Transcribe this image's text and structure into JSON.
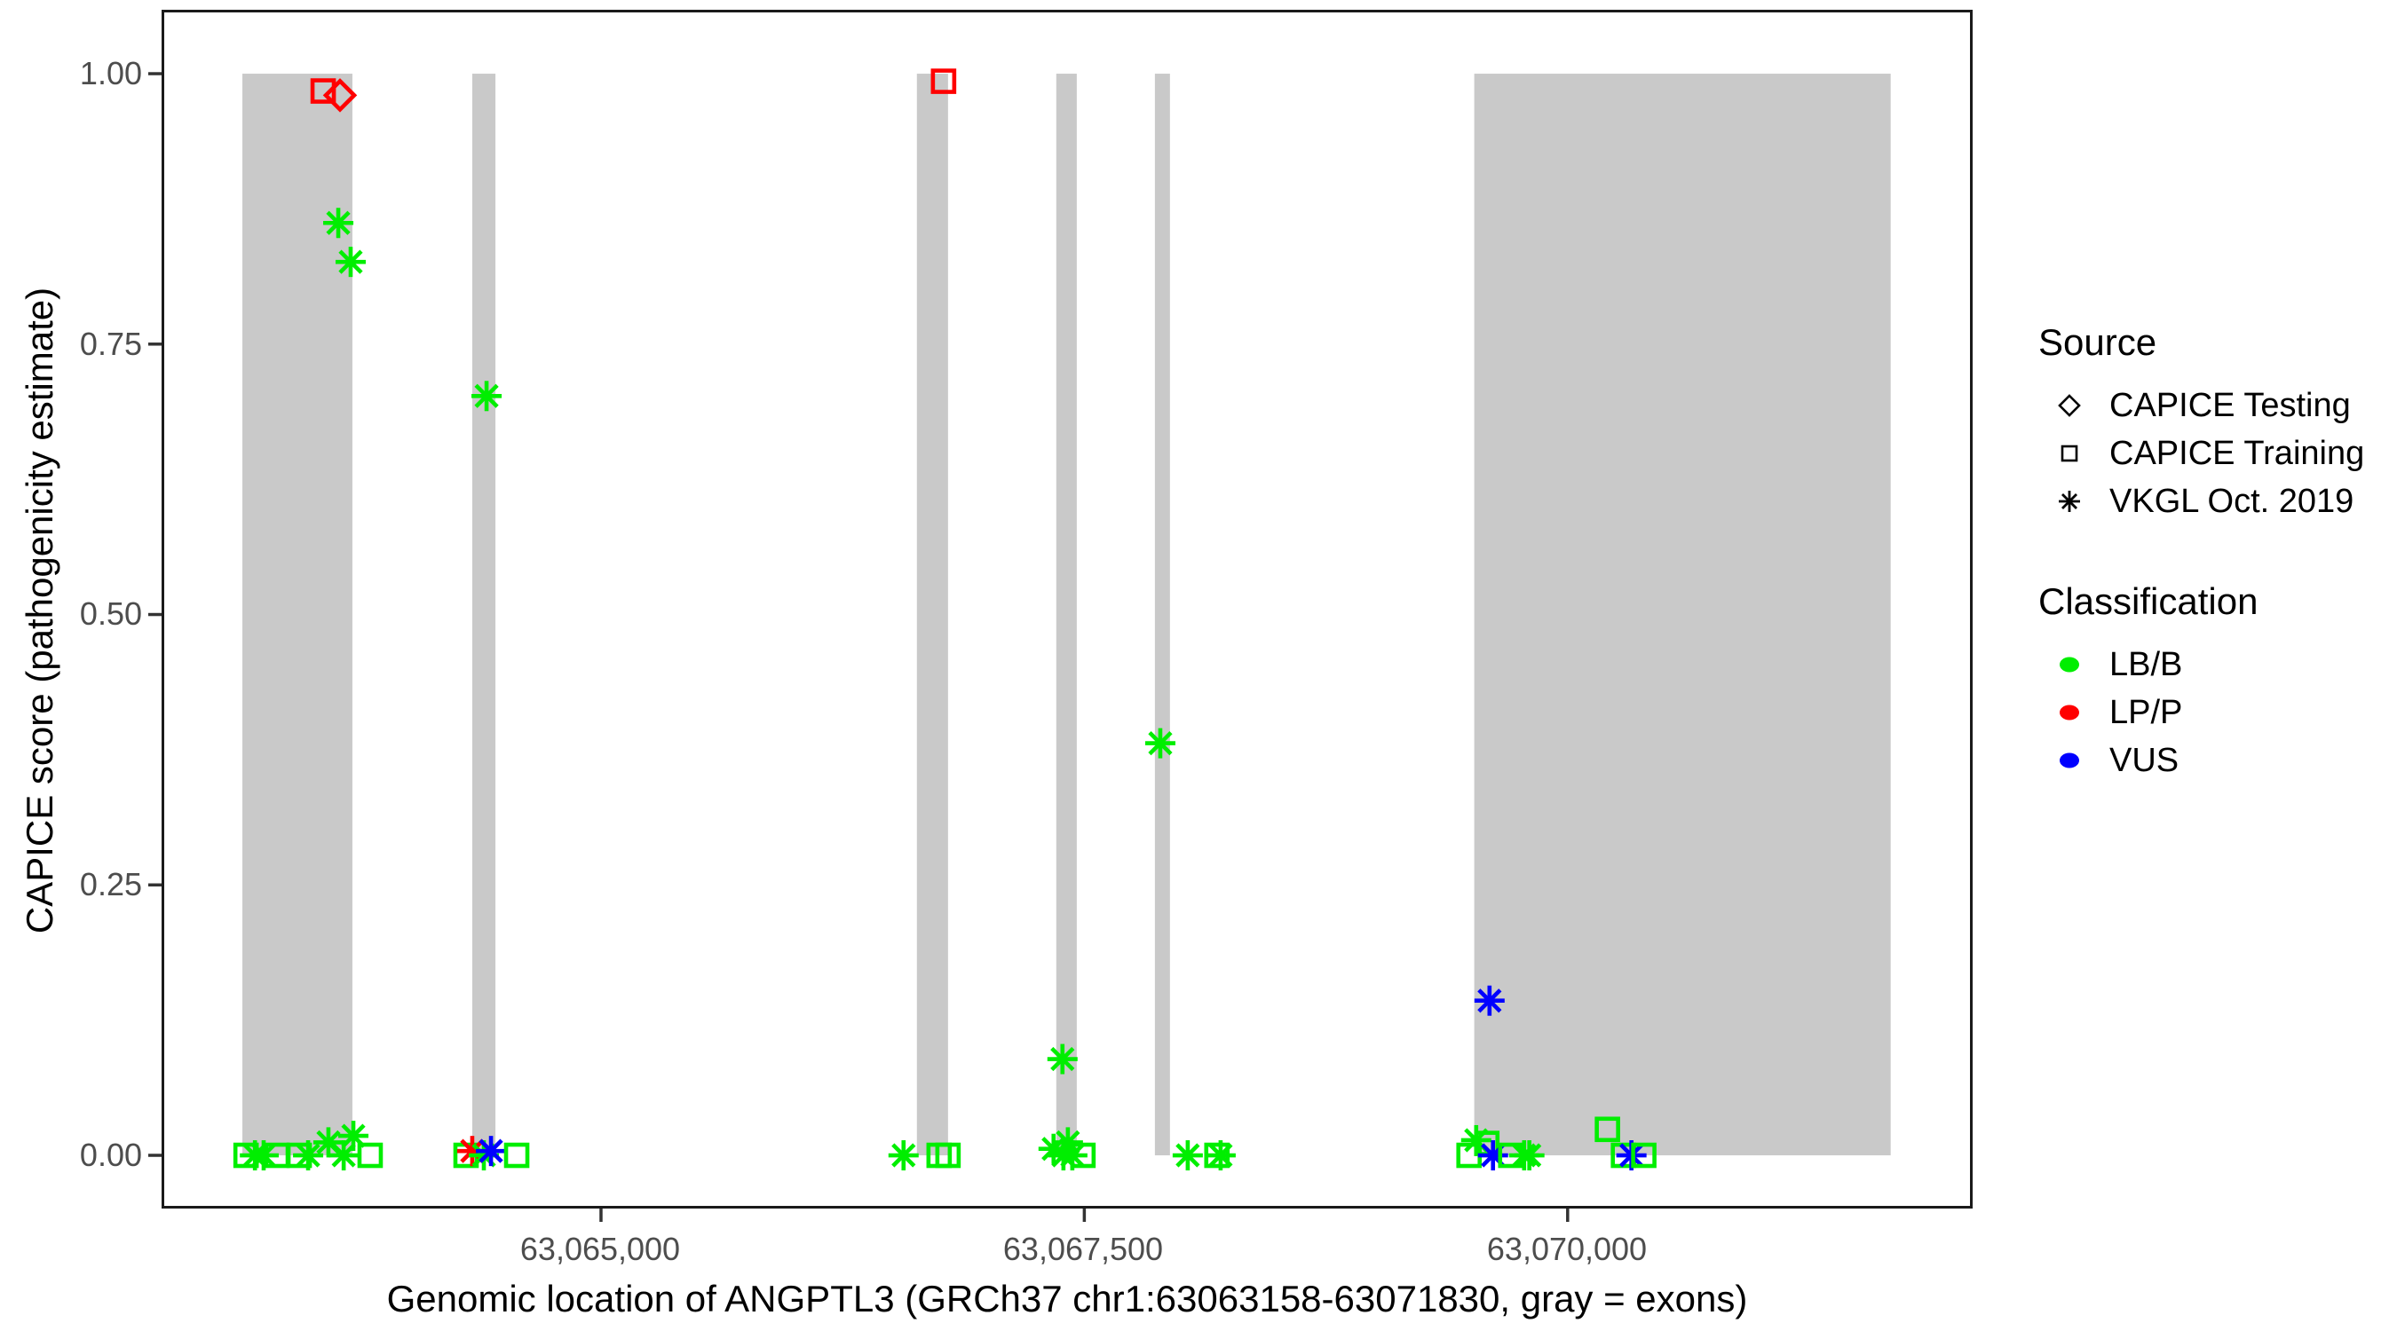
{
  "figure": {
    "y_axis_title": "CAPICE score (pathogenicity estimate)",
    "x_axis_title": "Genomic location of ANGPTL3 (GRCh37 chr1:63063158-63071830, gray = exons)"
  },
  "legend": {
    "source": {
      "title": "Source",
      "items": [
        {
          "label": "CAPICE Testing",
          "shape": "diamond"
        },
        {
          "label": "CAPICE Training",
          "shape": "square"
        },
        {
          "label": "VKGL Oct. 2019",
          "shape": "asterisk"
        }
      ]
    },
    "classification": {
      "title": "Classification",
      "items": [
        {
          "label": "LB/B",
          "color": "#00EE00"
        },
        {
          "label": "LP/P",
          "color": "#FF0000"
        },
        {
          "label": "VUS",
          "color": "#0000FF"
        }
      ]
    }
  },
  "chart_data": {
    "type": "scatter",
    "title": "",
    "xlabel": "Genomic location of ANGPTL3 (GRCh37 chr1:63063158-63071830, gray = exons)",
    "ylabel": "CAPICE score (pathogenicity estimate)",
    "xlim": [
      63062727,
      63072095
    ],
    "ylim": [
      -0.0492,
      1.0591
    ],
    "x_ticks": [
      {
        "pos": 63065000,
        "label": "63,065,000"
      },
      {
        "pos": 63067500,
        "label": "63,067,500"
      },
      {
        "pos": 63070000,
        "label": "63,070,000"
      }
    ],
    "y_ticks": [
      {
        "value": 0.0,
        "label": "0.00"
      },
      {
        "value": 0.25,
        "label": "0.25"
      },
      {
        "value": 0.5,
        "label": "0.50"
      },
      {
        "value": 0.75,
        "label": "0.75"
      },
      {
        "value": 1.0,
        "label": "1.00"
      }
    ],
    "legend_position": "right",
    "grid": false,
    "colors": {
      "LB/B": "#00EE00",
      "LP/P": "#FF0000",
      "VUS": "#0000FF",
      "exon": "#C9C9C9"
    },
    "shapes": {
      "CAPICE Testing": "diamond",
      "CAPICE Training": "square",
      "VKGL Oct. 2019": "asterisk"
    },
    "exons_note": "gray bands = exons, drawn from score 0 to 1",
    "exons": [
      [
        63063145,
        63063714
      ],
      [
        63064334,
        63064454
      ],
      [
        63066634,
        63066795
      ],
      [
        63067355,
        63067461
      ],
      [
        63067865,
        63067943
      ],
      [
        63069517,
        63071671
      ]
    ],
    "points": [
      {
        "pos": 63063164,
        "score": 0.0,
        "source": "CAPICE Training",
        "classification": "LB/B"
      },
      {
        "pos": 63063210,
        "score": 0.0,
        "source": "VKGL Oct. 2019",
        "classification": "LB/B"
      },
      {
        "pos": 63063255,
        "score": 0.0,
        "source": "VKGL Oct. 2019",
        "classification": "LB/B"
      },
      {
        "pos": 63063324,
        "score": 0.0,
        "source": "CAPICE Training",
        "classification": "LB/B"
      },
      {
        "pos": 63063439,
        "score": 0.0,
        "source": "CAPICE Training",
        "classification": "LB/B"
      },
      {
        "pos": 63063485,
        "score": 0.0,
        "source": "VKGL Oct. 2019",
        "classification": "LB/B"
      },
      {
        "pos": 63063563,
        "score": 0.984,
        "source": "CAPICE Training",
        "classification": "LP/P"
      },
      {
        "pos": 63063590,
        "score": 0.012,
        "source": "VKGL Oct. 2019",
        "classification": "LB/B"
      },
      {
        "pos": 63063641,
        "score": 0.862,
        "source": "VKGL Oct. 2019",
        "classification": "LB/B"
      },
      {
        "pos": 63063650,
        "score": 0.98,
        "source": "CAPICE Testing",
        "classification": "LP/P"
      },
      {
        "pos": 63063669,
        "score": 0.0,
        "source": "VKGL Oct. 2019",
        "classification": "LB/B"
      },
      {
        "pos": 63063705,
        "score": 0.826,
        "source": "VKGL Oct. 2019",
        "classification": "LB/B"
      },
      {
        "pos": 63063719,
        "score": 0.018,
        "source": "VKGL Oct. 2019",
        "classification": "LB/B"
      },
      {
        "pos": 63063806,
        "score": 0.0,
        "source": "CAPICE Training",
        "classification": "LB/B"
      },
      {
        "pos": 63064302,
        "score": 0.0,
        "source": "CAPICE Training",
        "classification": "LB/B"
      },
      {
        "pos": 63064334,
        "score": 0.004,
        "source": "VKGL Oct. 2019",
        "classification": "LP/P"
      },
      {
        "pos": 63064394,
        "score": 0.0,
        "source": "VKGL Oct. 2019",
        "classification": "LB/B"
      },
      {
        "pos": 63064408,
        "score": 0.702,
        "source": "VKGL Oct. 2019",
        "classification": "LB/B"
      },
      {
        "pos": 63064431,
        "score": 0.004,
        "source": "VKGL Oct. 2019",
        "classification": "VUS"
      },
      {
        "pos": 63064564,
        "score": 0.0,
        "source": "CAPICE Training",
        "classification": "LB/B"
      },
      {
        "pos": 63066565,
        "score": 0.0,
        "source": "VKGL Oct. 2019",
        "classification": "LB/B"
      },
      {
        "pos": 63066749,
        "score": 0.0,
        "source": "CAPICE Training",
        "classification": "LB/B"
      },
      {
        "pos": 63066772,
        "score": 0.993,
        "source": "CAPICE Training",
        "classification": "LP/P"
      },
      {
        "pos": 63066795,
        "score": 0.0,
        "source": "CAPICE Training",
        "classification": "LB/B"
      },
      {
        "pos": 63067341,
        "score": 0.006,
        "source": "VKGL Oct. 2019",
        "classification": "LB/B"
      },
      {
        "pos": 63067387,
        "score": 0.089,
        "source": "VKGL Oct. 2019",
        "classification": "LB/B"
      },
      {
        "pos": 63067392,
        "score": 0.0,
        "source": "VKGL Oct. 2019",
        "classification": "LB/B"
      },
      {
        "pos": 63067415,
        "score": 0.012,
        "source": "VKGL Oct. 2019",
        "classification": "LB/B"
      },
      {
        "pos": 63067438,
        "score": 0.0,
        "source": "VKGL Oct. 2019",
        "classification": "LB/B"
      },
      {
        "pos": 63067493,
        "score": 0.0,
        "source": "CAPICE Training",
        "classification": "LB/B"
      },
      {
        "pos": 63067893,
        "score": 0.381,
        "source": "VKGL Oct. 2019",
        "classification": "LB/B"
      },
      {
        "pos": 63068035,
        "score": 0.0,
        "source": "VKGL Oct. 2019",
        "classification": "LB/B"
      },
      {
        "pos": 63068186,
        "score": 0.0,
        "source": "CAPICE Training",
        "classification": "LB/B"
      },
      {
        "pos": 63068205,
        "score": 0.0,
        "source": "VKGL Oct. 2019",
        "classification": "LB/B"
      },
      {
        "pos": 63069490,
        "score": 0.0,
        "source": "CAPICE Training",
        "classification": "LB/B"
      },
      {
        "pos": 63069527,
        "score": 0.014,
        "source": "VKGL Oct. 2019",
        "classification": "LB/B"
      },
      {
        "pos": 63069582,
        "score": 0.011,
        "source": "CAPICE Training",
        "classification": "LB/B"
      },
      {
        "pos": 63069596,
        "score": 0.143,
        "source": "VKGL Oct. 2019",
        "classification": "VUS"
      },
      {
        "pos": 63069614,
        "score": 0.0,
        "source": "VKGL Oct. 2019",
        "classification": "VUS"
      },
      {
        "pos": 63069706,
        "score": 0.0,
        "source": "CAPICE Training",
        "classification": "LB/B"
      },
      {
        "pos": 63069775,
        "score": 0.0,
        "source": "VKGL Oct. 2019",
        "classification": "LB/B"
      },
      {
        "pos": 63069802,
        "score": 0.0,
        "source": "VKGL Oct. 2019",
        "classification": "LB/B"
      },
      {
        "pos": 63070206,
        "score": 0.024,
        "source": "CAPICE Training",
        "classification": "LB/B"
      },
      {
        "pos": 63070289,
        "score": 0.0,
        "source": "CAPICE Training",
        "classification": "LB/B"
      },
      {
        "pos": 63070330,
        "score": 0.0,
        "source": "VKGL Oct. 2019",
        "classification": "VUS"
      },
      {
        "pos": 63070394,
        "score": 0.0,
        "source": "CAPICE Training",
        "classification": "LB/B"
      }
    ]
  }
}
